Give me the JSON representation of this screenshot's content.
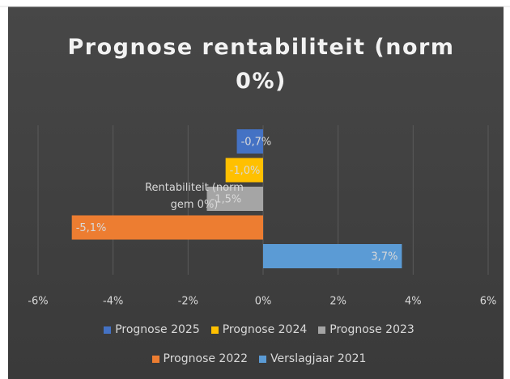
{
  "chart_data": {
    "type": "bar",
    "orientation": "horizontal",
    "title": "Prognose rentabiliteit (norm 0%)",
    "categories": [
      "Rentabiliteit (norm gem 0%)"
    ],
    "series": [
      {
        "name": "Prognose 2025",
        "color": "#4472c4",
        "values": [
          -0.7
        ],
        "value_labels": [
          "-0,7%"
        ]
      },
      {
        "name": "Prognose 2024",
        "color": "#ffc000",
        "values": [
          -1.0
        ],
        "value_labels": [
          "-1,0%"
        ]
      },
      {
        "name": "Prognose 2023",
        "color": "#a5a5a5",
        "values": [
          -1.5
        ],
        "value_labels": [
          "-1,5%"
        ]
      },
      {
        "name": "Prognose 2022",
        "color": "#ed7d31",
        "values": [
          -5.1
        ],
        "value_labels": [
          "-5,1%"
        ]
      },
      {
        "name": "Verslagjaar 2021",
        "color": "#5b9bd5",
        "values": [
          3.7
        ],
        "value_labels": [
          "3,7%"
        ]
      }
    ],
    "xlim": [
      -6,
      6
    ],
    "xticks": [
      {
        "value": -6,
        "label": "-6%"
      },
      {
        "value": -4,
        "label": "-4%"
      },
      {
        "value": -2,
        "label": "-2%"
      },
      {
        "value": 0,
        "label": "0%"
      },
      {
        "value": 2,
        "label": "2%"
      },
      {
        "value": 4,
        "label": "4%"
      },
      {
        "value": 6,
        "label": "6%"
      }
    ],
    "grid": true,
    "legend": "bottom"
  }
}
